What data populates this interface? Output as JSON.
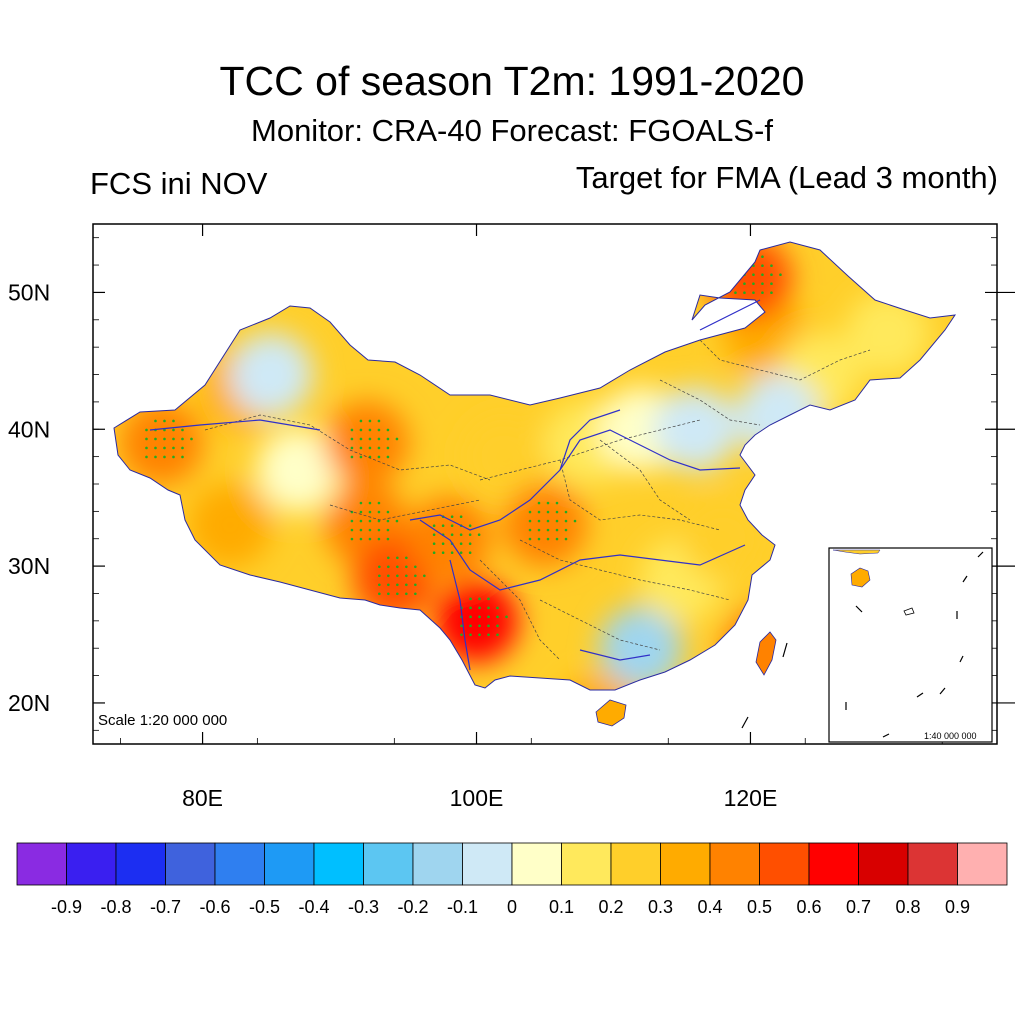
{
  "title": "TCC of season T2m: 1991-2020",
  "subtitle": "Monitor: CRA-40   Forecast: FGOALS-f",
  "left_label": "FCS ini NOV",
  "right_label": "Target for FMA (Lead 3 month)",
  "main_scale": "Scale 1:20 000 000",
  "inset_scale": "1:40 000 000",
  "lat_ticks": [
    {
      "lat": 50,
      "label": "50N"
    },
    {
      "lat": 40,
      "label": "40N"
    },
    {
      "lat": 30,
      "label": "30N"
    },
    {
      "lat": 20,
      "label": "20N"
    }
  ],
  "lon_ticks": [
    {
      "lon": 80,
      "label": "80E"
    },
    {
      "lon": 100,
      "label": "100E"
    },
    {
      "lon": 120,
      "label": "120E"
    }
  ],
  "extent": {
    "lon_min": 72,
    "lon_max": 138,
    "lat_min": 17,
    "lat_max": 55
  },
  "colorbar": {
    "colors": [
      "#8a2be2",
      "#3a1ff0",
      "#1c2ef2",
      "#3f62dd",
      "#2f7ff0",
      "#1e9af5",
      "#00bfff",
      "#5cc6f2",
      "#9fd5ef",
      "#cfe9f6",
      "#ffffc8",
      "#ffe95c",
      "#ffcf2a",
      "#ffab00",
      "#ff8200",
      "#ff4f00",
      "#ff0000",
      "#d80000",
      "#dc3434",
      "#ffb0b0"
    ],
    "labels": [
      "-0.9",
      "-0.8",
      "-0.7",
      "-0.6",
      "-0.5",
      "-0.4",
      "-0.3",
      "-0.2",
      "-0.1",
      "0",
      "0.1",
      "0.2",
      "0.3",
      "0.4",
      "0.5",
      "0.6",
      "0.7",
      "0.8",
      "0.9"
    ]
  },
  "chart_data": {
    "type": "heatmap",
    "title": "TCC of season T2m: 1991-2020",
    "variable": "TCC",
    "value_range": [
      -0.9,
      0.9
    ],
    "cells": [
      {
        "lon": 77,
        "lat": 39,
        "value": 0.45
      },
      {
        "lon": 83,
        "lat": 43,
        "value": 0.4
      },
      {
        "lon": 85,
        "lat": 44,
        "value": -0.1
      },
      {
        "lon": 87,
        "lat": 37,
        "value": 0.05
      },
      {
        "lon": 82,
        "lat": 33,
        "value": 0.4
      },
      {
        "lon": 92,
        "lat": 39,
        "value": 0.45
      },
      {
        "lon": 92,
        "lat": 33,
        "value": 0.45
      },
      {
        "lon": 94,
        "lat": 29,
        "value": 0.55
      },
      {
        "lon": 98,
        "lat": 32,
        "value": 0.45
      },
      {
        "lon": 100,
        "lat": 26,
        "value": 0.65
      },
      {
        "lon": 102,
        "lat": 38,
        "value": 0.25
      },
      {
        "lon": 105,
        "lat": 33,
        "value": 0.45
      },
      {
        "lon": 108,
        "lat": 39,
        "value": 0.1
      },
      {
        "lon": 112,
        "lat": 40,
        "value": 0.05
      },
      {
        "lon": 116,
        "lat": 40,
        "value": -0.05
      },
      {
        "lon": 112,
        "lat": 24,
        "value": -0.15
      },
      {
        "lon": 115,
        "lat": 29,
        "value": 0.15
      },
      {
        "lon": 118,
        "lat": 32,
        "value": 0.25
      },
      {
        "lon": 121,
        "lat": 47,
        "value": 0.3
      },
      {
        "lon": 125,
        "lat": 44,
        "value": 0.1
      },
      {
        "lon": 122,
        "lat": 41,
        "value": -0.05
      },
      {
        "lon": 130,
        "lat": 47,
        "value": 0.15
      },
      {
        "lon": 120,
        "lat": 51,
        "value": 0.55
      },
      {
        "lon": 121,
        "lat": 24,
        "value": 0.45
      },
      {
        "lon": 109,
        "lat": 19,
        "value": 0.4
      }
    ]
  }
}
